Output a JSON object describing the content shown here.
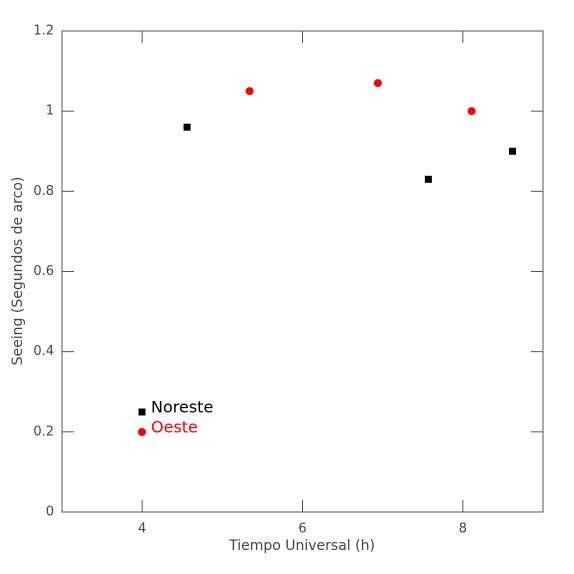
{
  "chart_data": {
    "type": "scatter",
    "xlabel": "Tiempo Universal (h)",
    "ylabel": "Seeing (Segundos de arco)",
    "xlim": [
      3,
      9
    ],
    "xticks": [
      4,
      6,
      8
    ],
    "ylim": [
      0,
      1.2
    ],
    "yticks": [
      0,
      0.2,
      0.4,
      0.6,
      0.8,
      1,
      1.2
    ],
    "series": [
      {
        "name": "Noreste",
        "color": "#000000",
        "marker": "square",
        "x": [
          4.56,
          7.57,
          8.62
        ],
        "values": [
          0.96,
          0.83,
          0.9
        ]
      },
      {
        "name": "Oeste",
        "color": "#ff0000",
        "marker": "circle",
        "x": [
          5.34,
          6.94,
          8.11
        ],
        "values": [
          1.05,
          1.07,
          1.0
        ]
      }
    ]
  }
}
